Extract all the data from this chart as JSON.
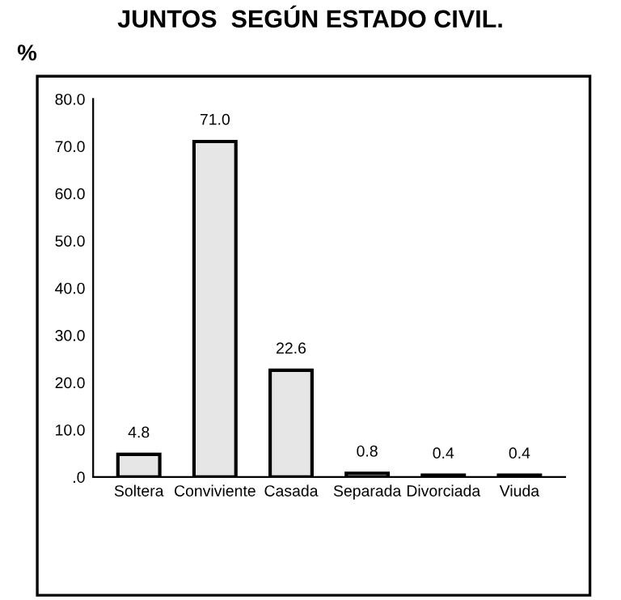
{
  "chart_data": {
    "type": "bar",
    "title": "JUNTOS  SEGÚN ESTADO CIVIL.",
    "ylabel": "%",
    "categories": [
      "Soltera",
      "Conviviente",
      "Casada",
      "Separada",
      "Divorciada",
      "Viuda"
    ],
    "values": [
      4.8,
      71.0,
      22.6,
      0.8,
      0.4,
      0.4
    ],
    "value_labels": [
      "4.8",
      "71.0",
      "22.6",
      "0.8",
      "0.4",
      "0.4"
    ],
    "color": "#e6e6e6",
    "ylim": [
      0,
      80
    ],
    "yticks": [
      {
        "value": 0,
        "label": ".0"
      },
      {
        "value": 10,
        "label": "10.0"
      },
      {
        "value": 20,
        "label": "20.0"
      },
      {
        "value": 30,
        "label": "30.0"
      },
      {
        "value": 40,
        "label": "40.0"
      },
      {
        "value": 50,
        "label": "50.0"
      },
      {
        "value": 60,
        "label": "60.0"
      },
      {
        "value": 70,
        "label": "70.0"
      },
      {
        "value": 80,
        "label": "80.0"
      }
    ],
    "grid": false
  }
}
